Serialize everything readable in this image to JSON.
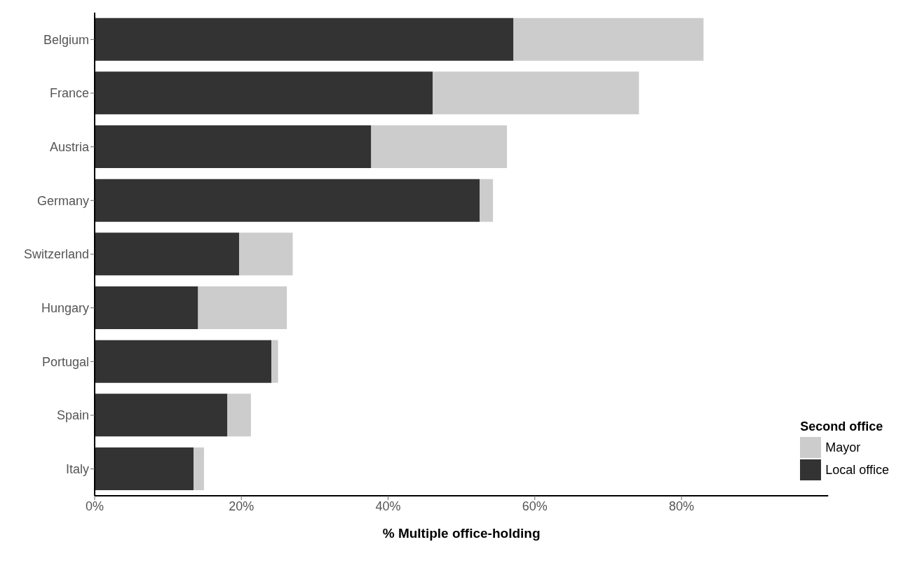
{
  "chart_data": {
    "type": "bar",
    "orientation": "horizontal",
    "stacked": true,
    "xlabel": "% Multiple office-holding",
    "legend_title": "Second office",
    "legend": "bottom right",
    "grid": false,
    "categories": [
      "Belgium",
      "France",
      "Austria",
      "Germany",
      "Switzerland",
      "Hungary",
      "Portugal",
      "Spain",
      "Italy"
    ],
    "series": [
      {
        "name": "Local office",
        "color": "#333333",
        "values": [
          57.1,
          46.1,
          37.7,
          52.5,
          19.7,
          14.1,
          24.1,
          18.1,
          13.5
        ]
      },
      {
        "name": "Mayor",
        "color": "#cccccc",
        "values": [
          25.9,
          28.1,
          18.5,
          1.8,
          7.3,
          12.1,
          0.9,
          3.2,
          1.4
        ]
      }
    ],
    "xlim": [
      0,
      100
    ],
    "xticks": [
      {
        "value": 0,
        "label": "0%"
      },
      {
        "value": 20,
        "label": "20%"
      },
      {
        "value": 40,
        "label": "40%"
      },
      {
        "value": 60,
        "label": "60%"
      },
      {
        "value": 80,
        "label": "80%"
      }
    ]
  }
}
